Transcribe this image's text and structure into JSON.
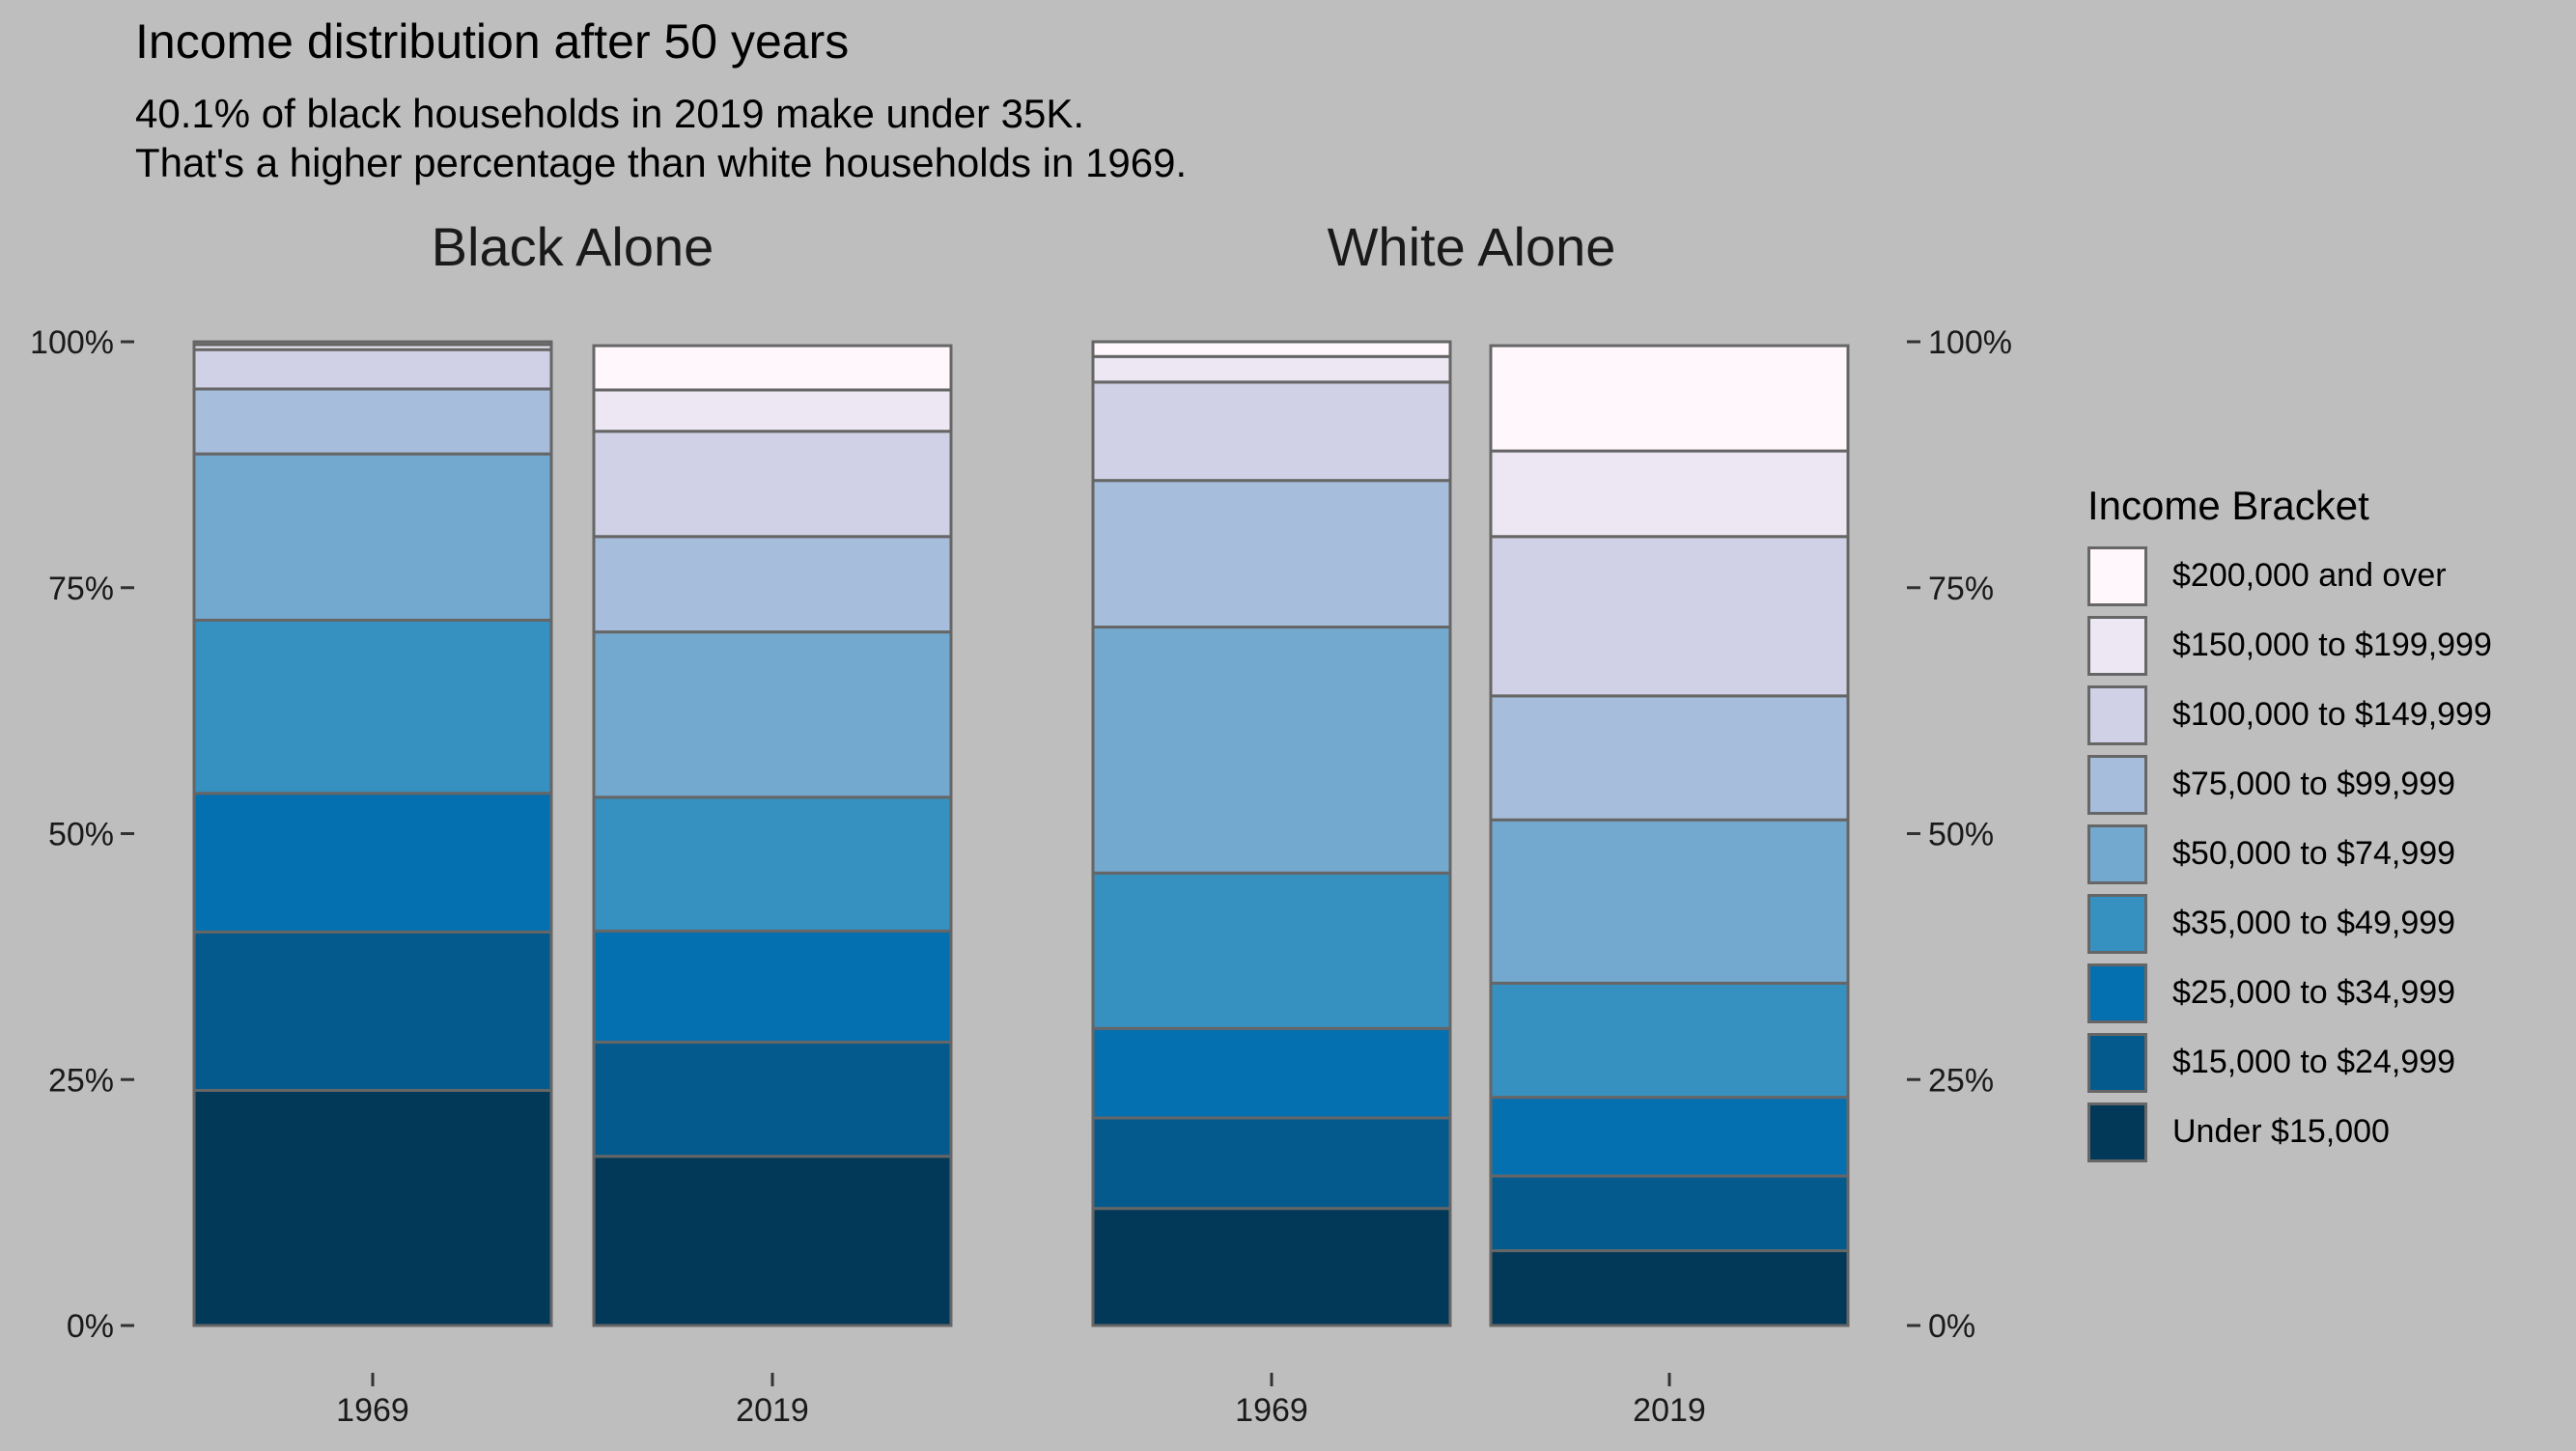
{
  "title": "Income distribution after 50 years",
  "subtitle_lines": [
    "40.1% of black households in 2019 make under 35K.",
    "That's a higher percentage than white households in 1969."
  ],
  "legend": {
    "title": "Income Bracket",
    "items": [
      {
        "label": "$200,000 and over",
        "color": "#FFF7FB"
      },
      {
        "label": "$150,000 to $199,999",
        "color": "#ECE7F2"
      },
      {
        "label": "$100,000 to $149,999",
        "color": "#D0D1E6"
      },
      {
        "label": "$75,000 to $99,999",
        "color": "#A6BDDB"
      },
      {
        "label": "$50,000 to $74,999",
        "color": "#74A9CF"
      },
      {
        "label": "$35,000 to $49,999",
        "color": "#3690C0"
      },
      {
        "label": "$25,000 to $34,999",
        "color": "#0570B0"
      },
      {
        "label": "$15,000 to $24,999",
        "color": "#045A8D"
      },
      {
        "label": "Under $15,000",
        "color": "#023858"
      }
    ]
  },
  "chart_data": {
    "type": "bar",
    "stacked": true,
    "ylim": [
      0,
      100
    ],
    "y_ticks": [
      "0%",
      "25%",
      "50%",
      "75%",
      "100%"
    ],
    "categories": [
      "1969",
      "2019"
    ],
    "series_order_bottom_to_top": [
      "Under $15,000",
      "$15,000 to $24,999",
      "$25,000 to $34,999",
      "$35,000 to $49,999",
      "$50,000 to $74,999",
      "$75,000 to $99,999",
      "$100,000 to $149,999",
      "$150,000 to $199,999",
      "$200,000 and over"
    ],
    "panels": [
      {
        "name": "Black Alone",
        "bars": [
          {
            "category": "1969",
            "values": [
              23.9,
              16.1,
              14.1,
              17.6,
              16.9,
              6.6,
              4.0,
              0.5,
              0.3
            ]
          },
          {
            "category": "2019",
            "values": [
              17.2,
              11.6,
              11.3,
              13.6,
              16.8,
              9.7,
              10.7,
              4.2,
              4.5
            ]
          }
        ]
      },
      {
        "name": "White Alone",
        "bars": [
          {
            "category": "1969",
            "values": [
              11.9,
              9.2,
              9.1,
              15.8,
              25.0,
              14.9,
              10.0,
              2.6,
              1.5
            ]
          },
          {
            "category": "2019",
            "values": [
              7.6,
              7.6,
              8.0,
              11.6,
              16.6,
              12.6,
              16.2,
              8.7,
              10.7
            ]
          }
        ]
      }
    ]
  }
}
